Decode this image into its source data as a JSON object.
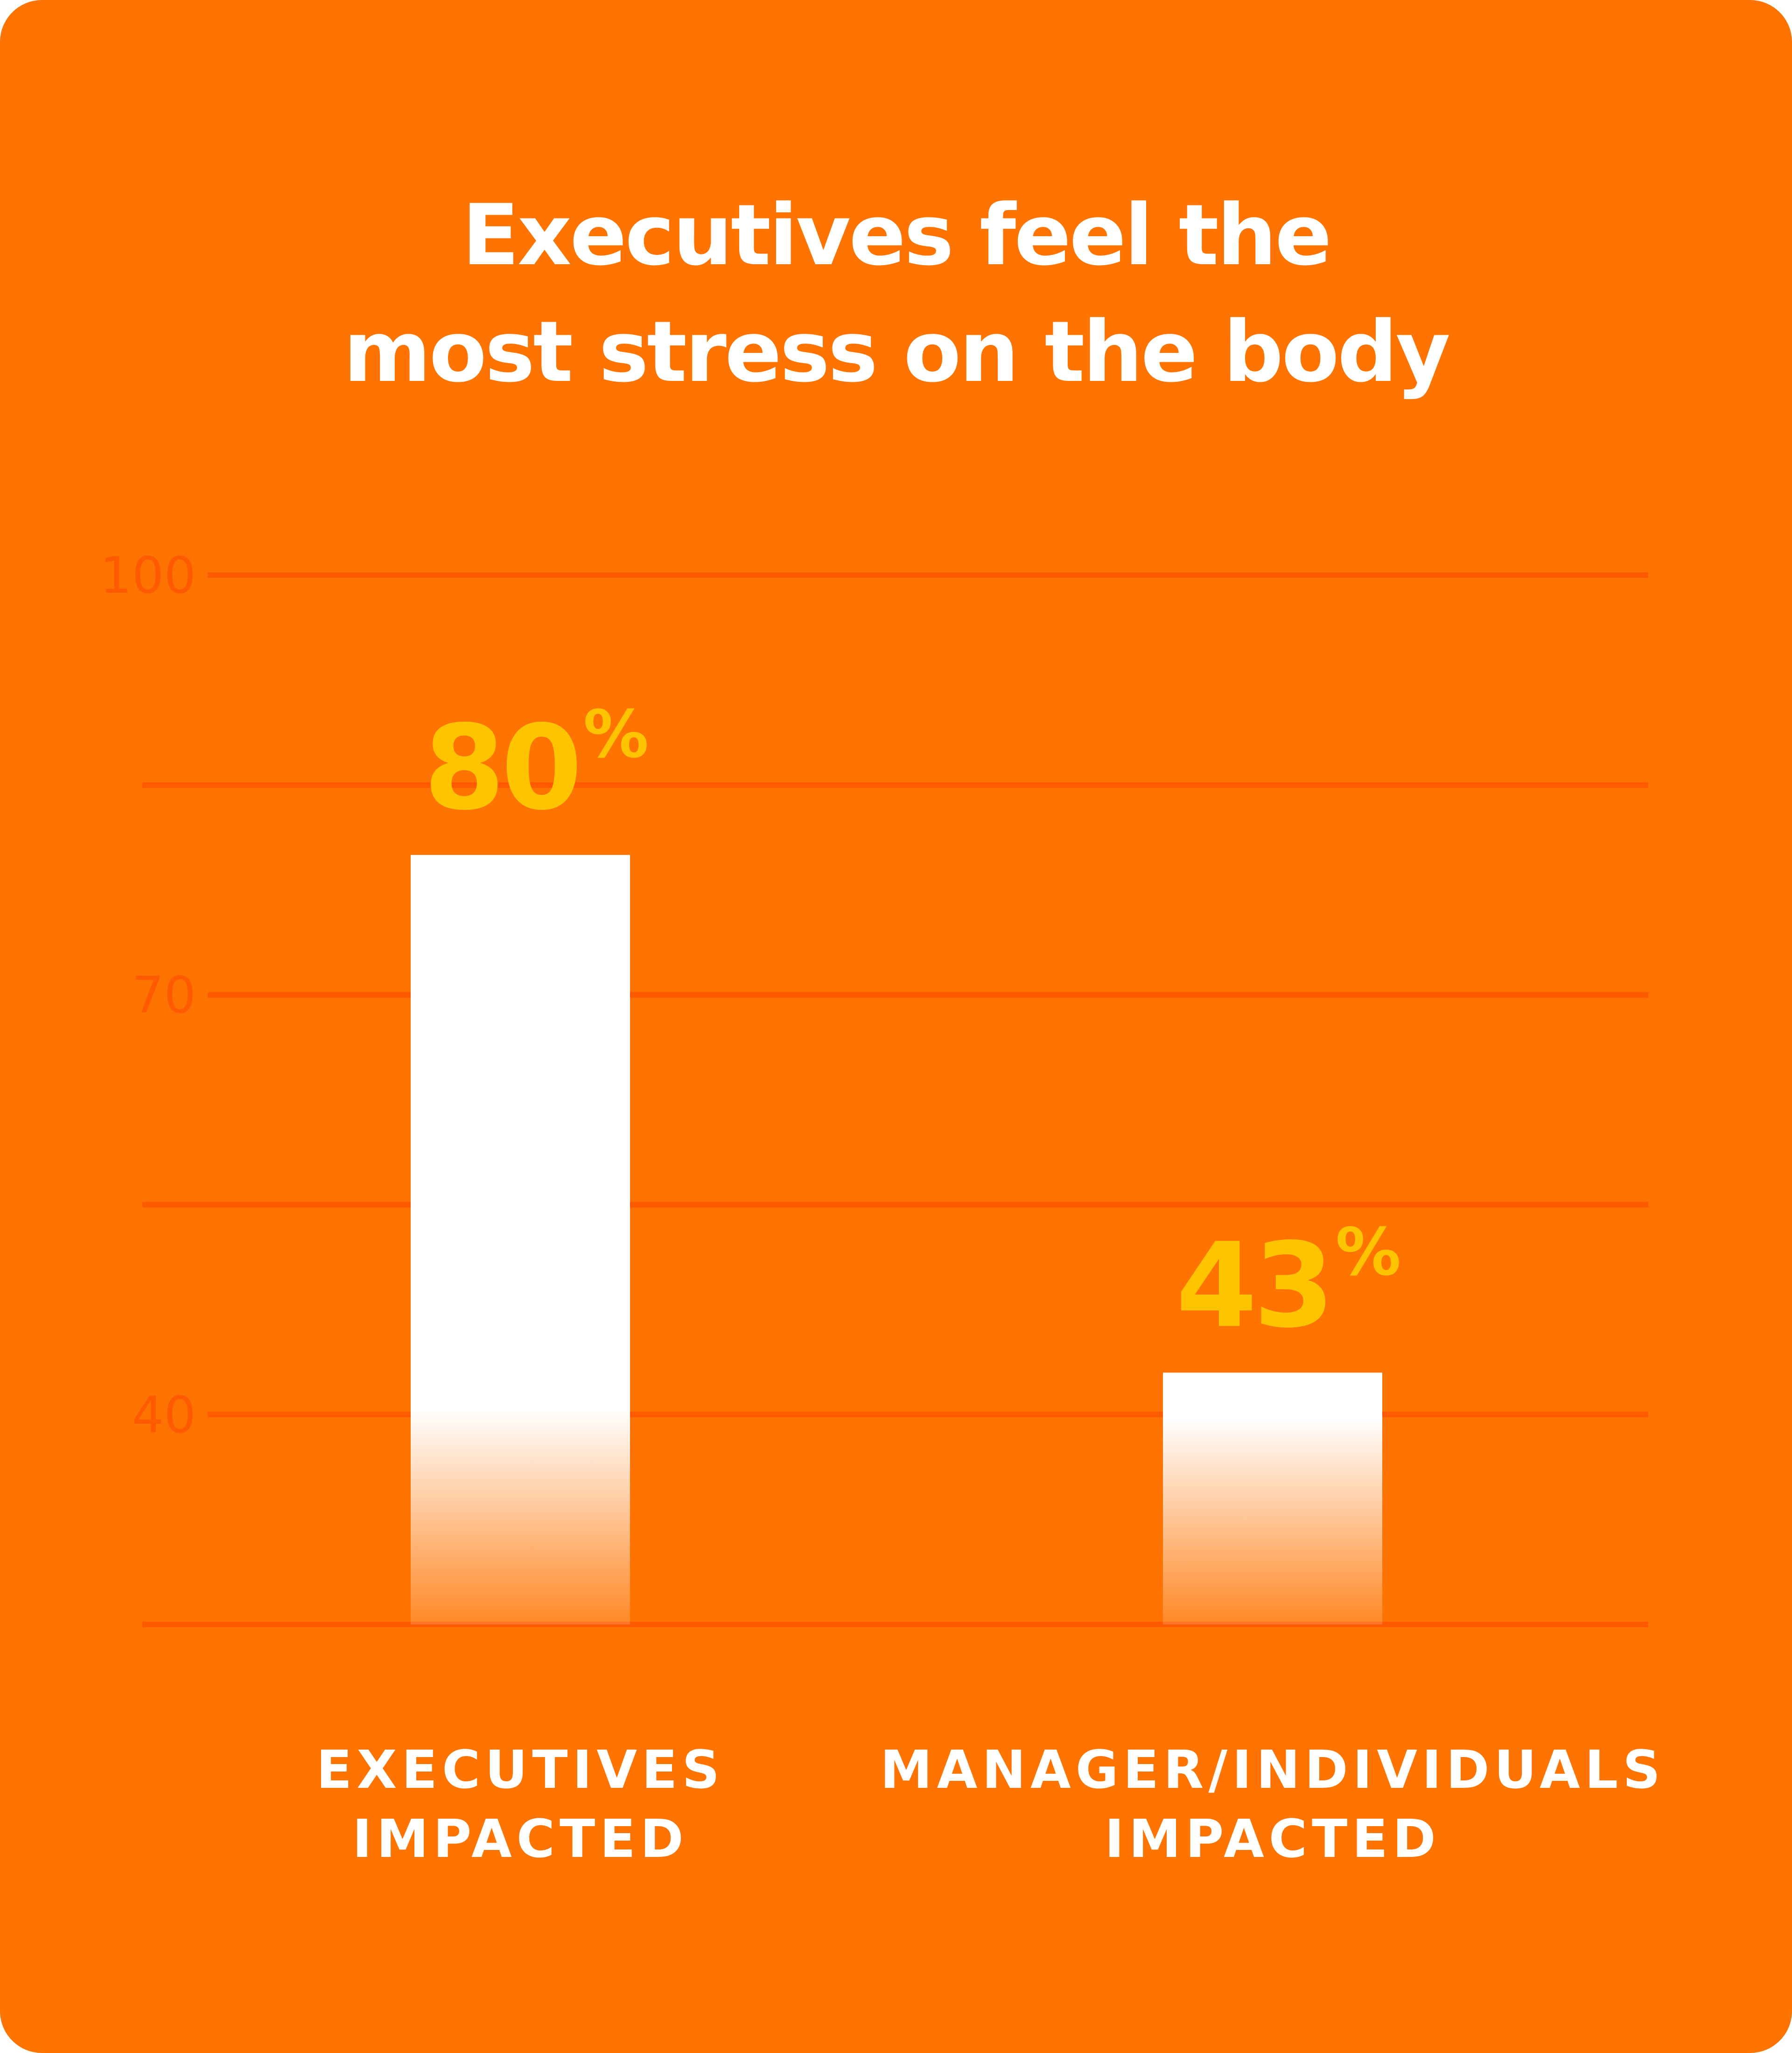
{
  "chart_data": {
    "type": "bar",
    "title": [
      "Executives feel the",
      "most stress on the body"
    ],
    "categories": [
      [
        "EXECUTIVES",
        "IMPACTED"
      ],
      [
        "MANAGER/INDIVIDUALS",
        "IMPACTED"
      ]
    ],
    "values": [
      80,
      43
    ],
    "value_labels": [
      "80",
      "43"
    ],
    "value_unit": "%",
    "yticks": [
      100,
      70,
      40
    ],
    "ylim": [
      25,
      100
    ],
    "grid": true,
    "xlabel": "",
    "ylabel": ""
  },
  "colors": {
    "background": "#ff7300",
    "bar": "#ffffff",
    "value_label": "#ffc400",
    "gridline": "#ff5a00",
    "tick_label": "#ff5a00",
    "text": "#ffffff"
  }
}
